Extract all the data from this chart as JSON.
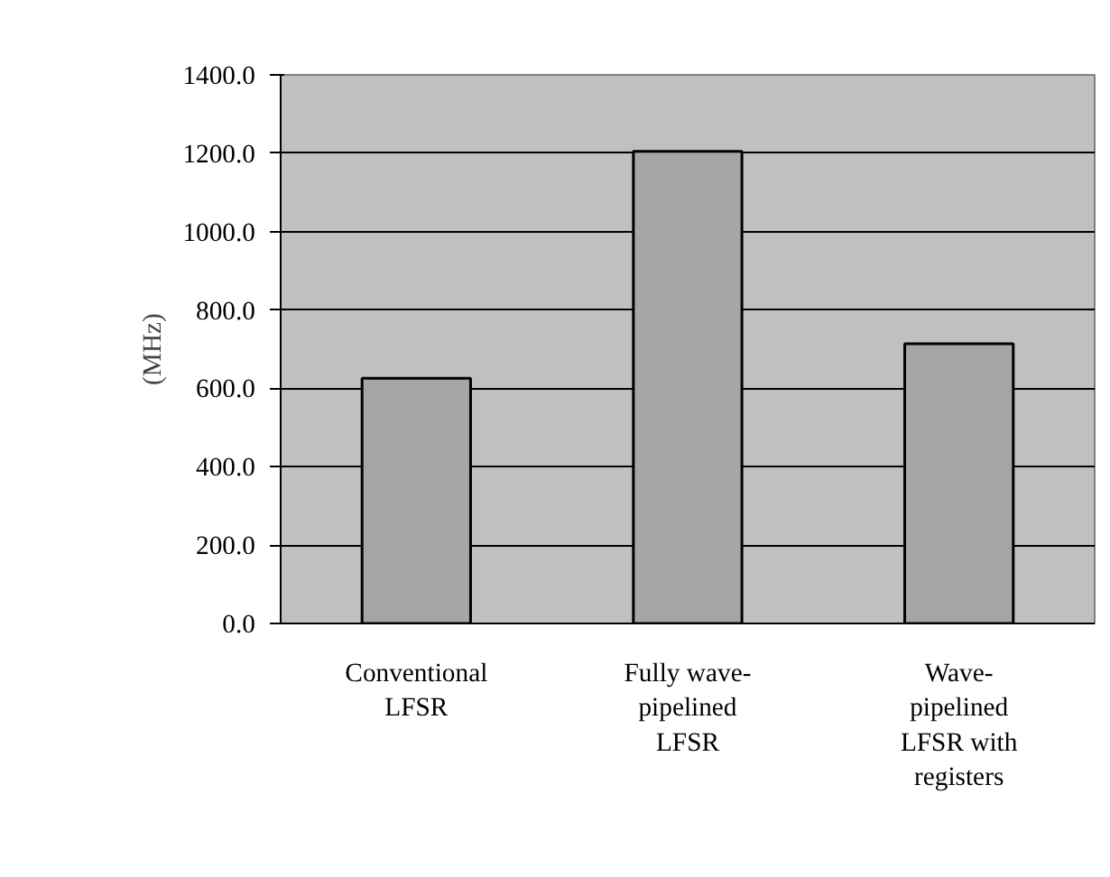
{
  "chart_data": {
    "type": "bar",
    "ylabel": "(MHz)",
    "categories": [
      "Conventional\nLFSR",
      "Fully wave-\npipelined\nLFSR",
      "Wave-\npipelined\nLFSR with\nregisters"
    ],
    "values": [
      626,
      1205,
      714
    ],
    "color": "#a6a6a6",
    "ylim": [
      0,
      1400
    ],
    "yticks": [
      {
        "value": 0,
        "label": "0.0"
      },
      {
        "value": 200,
        "label": "200.0"
      },
      {
        "value": 400,
        "label": "400.0"
      },
      {
        "value": 600,
        "label": "600.0"
      },
      {
        "value": 800,
        "label": "800.0"
      },
      {
        "value": 1000,
        "label": "1000.0"
      },
      {
        "value": 1200,
        "label": "1200.0"
      },
      {
        "value": 1400,
        "label": "1400.0"
      }
    ],
    "grid": "y"
  }
}
